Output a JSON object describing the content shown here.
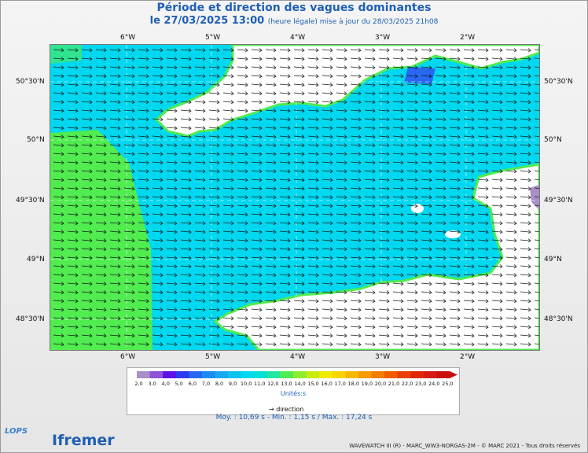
{
  "title": "Période et direction des vagues dominantes",
  "subtitle_date": "le 27/03/2025 13:00",
  "subtitle_update": "(heure légale) mise à jour du 28/03/2025 21h08",
  "lon_labels": [
    "6°W",
    "5°W",
    "4°W",
    "3°W",
    "2°W"
  ],
  "lat_labels": [
    "50°30'N",
    "50°N",
    "49°30'N",
    "49°N",
    "48°30'N"
  ],
  "legend": {
    "ticks": [
      "2,0",
      "3,0",
      "4,0",
      "5,0",
      "6,0",
      "7,0",
      "8,0",
      "9,0",
      "10,0",
      "11,0",
      "12,0",
      "13,0",
      "14,0",
      "15,0",
      "16,0",
      "17,0",
      "18,0",
      "19,0",
      "20,0",
      "21,0",
      "22,0",
      "23,0",
      "24,0",
      "25,0"
    ],
    "colors": [
      "#a88fc8",
      "#9050d8",
      "#6010e8",
      "#2a3cf0",
      "#2868f0",
      "#1c8cf0",
      "#18aaf0",
      "#10c2f0",
      "#00d8f0",
      "#00e0d8",
      "#20e8a0",
      "#50ec50",
      "#90ec30",
      "#c8ec10",
      "#f0ea00",
      "#f8d400",
      "#f8b800",
      "#f89a00",
      "#f07c00",
      "#f05c00",
      "#e84000",
      "#e02800",
      "#d81818",
      "#c81010"
    ],
    "unit": "Unités:s",
    "direction_label": "→ direction"
  },
  "stats": "Moy. : 10,69 s   -   Min. : 1,15 s / Max. : 17,24 s",
  "credits": "WAVEWATCH III (R) - MARC_WW3-NORGAS-2M - © MARC 2021 - Tous droits réservés",
  "logos": {
    "lops": "LOPS",
    "ifremer": "Ifremer"
  },
  "map_colors": {
    "sea_main": "#00d8f0",
    "sea_west": "#50ec50",
    "land": "#ffffff",
    "arrow": "#111111"
  }
}
